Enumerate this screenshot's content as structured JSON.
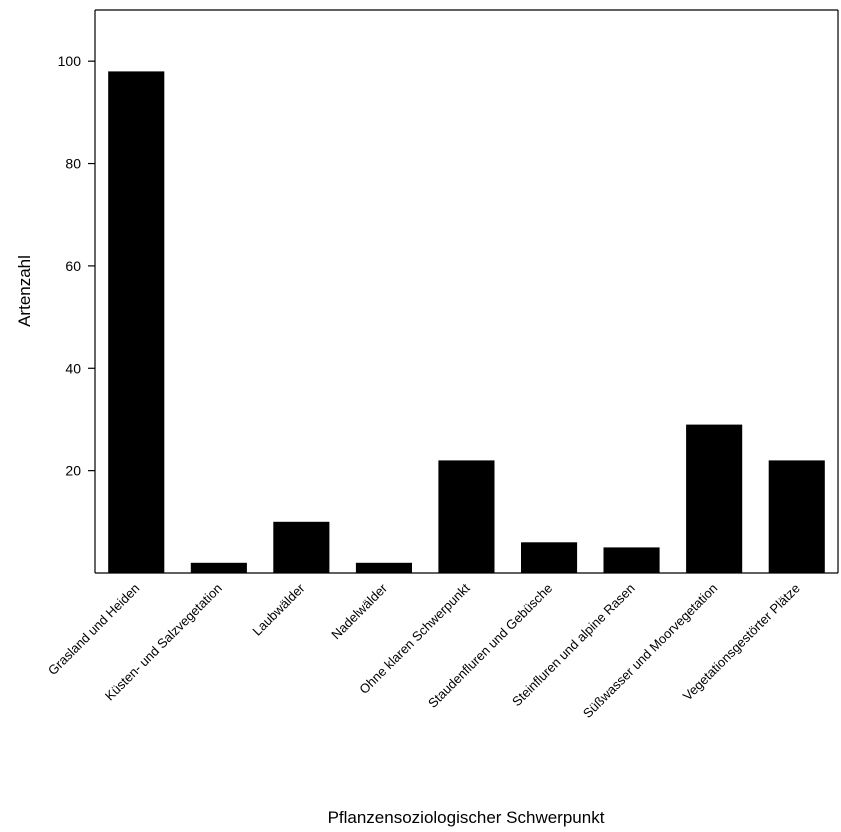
{
  "chart_data": {
    "type": "bar",
    "title": "",
    "xlabel": "Pflanzensoziologischer Schwerpunkt",
    "ylabel": "Artenzahl",
    "categories": [
      "Grasland und Heiden",
      "Küsten- und Salzvegetation",
      "Laubwälder",
      "Nadelwälder",
      "Ohne klaren Schwerpunkt",
      "Staudenfluren und Gebüsche",
      "Steinfluren und alpine Rasen",
      "Süßwasser und Moorvegetation",
      "Vegetationsgestörter Plätze"
    ],
    "values": [
      98,
      2,
      10,
      2,
      22,
      6,
      5,
      29,
      22
    ],
    "ylim": [
      0,
      110
    ],
    "yticks": [
      20,
      40,
      60,
      80,
      100
    ],
    "bar_color": "#000000",
    "grid": false,
    "legend": "none"
  }
}
